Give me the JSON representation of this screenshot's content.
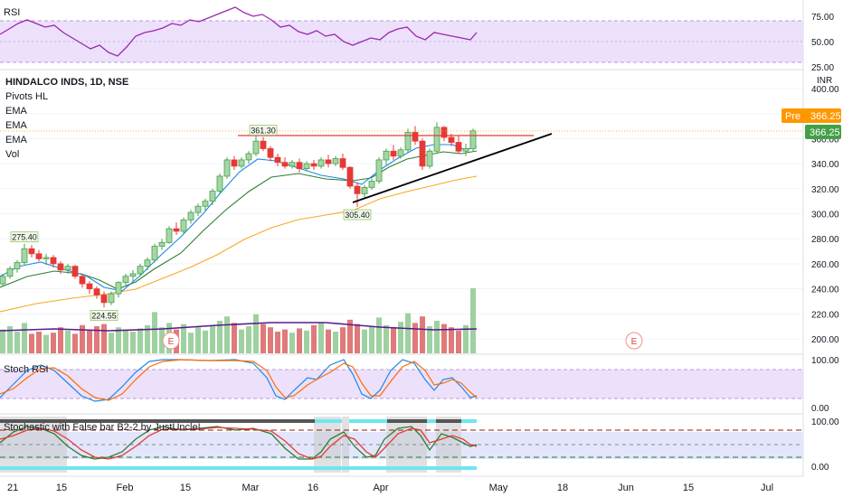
{
  "colors": {
    "up": "#43a047",
    "down": "#e53935",
    "ema_fast": "#1e88e5",
    "ema_mid": "#2e7d32",
    "ema_slow": "#f9a825",
    "rsi": "#9c27b0",
    "band": "#e9d8fb",
    "resistance": "#e53935",
    "trendline": "#000000",
    "price_tag": "#ff9800",
    "last_tag": "#43a047"
  },
  "rsi_pane": {
    "title": "RSI",
    "ticks": [
      "75.00",
      "50.00",
      "25.00"
    ]
  },
  "main_pane": {
    "symbol": "HINDALCO INDS, 1D, NSE",
    "indicators": [
      "Pivots HL",
      "EMA",
      "EMA",
      "EMA",
      "Vol"
    ],
    "currency": "INR",
    "price_ticks": [
      "400.00",
      "380.00",
      "360.00",
      "340.00",
      "320.00",
      "300.00",
      "280.00",
      "260.00",
      "240.00",
      "220.00",
      "200.00"
    ],
    "pivots": [
      "275.40",
      "361.30",
      "224.55",
      "305.40"
    ],
    "pre_label": "Pre",
    "pre_value": "366.25",
    "last_value": "366.25",
    "earnings_marker": "E"
  },
  "stoch_rsi_pane": {
    "title": "Stoch RSI",
    "ticks": [
      "100.00",
      "0.00"
    ]
  },
  "stoch_pane": {
    "title": "Stochastic with False bar B2-2 by JustUncle!",
    "ticks": [
      "100.00",
      "0.00"
    ]
  },
  "time_axis": [
    "21",
    "15",
    "Feb",
    "15",
    "Mar",
    "16",
    "Apr",
    "May",
    "18",
    "Jun",
    "15",
    "Jul"
  ],
  "chart_data": {
    "type": "candlestick",
    "symbol": "HINDALCO INDS",
    "interval": "1D",
    "exchange": "NSE",
    "y_range": [
      195,
      405
    ],
    "series": [
      {
        "name": "Pivots HL",
        "values": [
          275.4,
          361.3,
          224.55,
          305.4
        ]
      }
    ],
    "candles_ohlc": [
      [
        244,
        252,
        242,
        250
      ],
      [
        250,
        258,
        248,
        256
      ],
      [
        256,
        263,
        253,
        261
      ],
      [
        261,
        276,
        259,
        272
      ],
      [
        272,
        275,
        265,
        268
      ],
      [
        268,
        271,
        262,
        264
      ],
      [
        264,
        268,
        259,
        265
      ],
      [
        265,
        267,
        257,
        260
      ],
      [
        260,
        262,
        252,
        255
      ],
      [
        255,
        260,
        252,
        258
      ],
      [
        258,
        259,
        248,
        250
      ],
      [
        250,
        252,
        241,
        244
      ],
      [
        244,
        246,
        236,
        240
      ],
      [
        240,
        242,
        232,
        235
      ],
      [
        235,
        238,
        225,
        229
      ],
      [
        229,
        238,
        227,
        236
      ],
      [
        236,
        246,
        233,
        245
      ],
      [
        245,
        252,
        242,
        250
      ],
      [
        250,
        255,
        246,
        252
      ],
      [
        252,
        260,
        250,
        258
      ],
      [
        258,
        265,
        255,
        263
      ],
      [
        263,
        276,
        261,
        274
      ],
      [
        274,
        280,
        271,
        277
      ],
      [
        277,
        290,
        276,
        288
      ],
      [
        288,
        293,
        283,
        286
      ],
      [
        286,
        297,
        284,
        295
      ],
      [
        295,
        303,
        292,
        301
      ],
      [
        301,
        308,
        298,
        306
      ],
      [
        306,
        312,
        302,
        310
      ],
      [
        310,
        320,
        307,
        318
      ],
      [
        318,
        332,
        316,
        330
      ],
      [
        330,
        345,
        328,
        343
      ],
      [
        343,
        346,
        335,
        338
      ],
      [
        338,
        345,
        336,
        343
      ],
      [
        343,
        350,
        340,
        348
      ],
      [
        348,
        362,
        346,
        358
      ],
      [
        358,
        361.3,
        350,
        352
      ],
      [
        352,
        354,
        342,
        345
      ],
      [
        345,
        348,
        338,
        341
      ],
      [
        341,
        345,
        336,
        338
      ],
      [
        338,
        343,
        336,
        341
      ],
      [
        341,
        344,
        333,
        336
      ],
      [
        336,
        342,
        334,
        340
      ],
      [
        340,
        343,
        335,
        338
      ],
      [
        338,
        345,
        336,
        343
      ],
      [
        343,
        347,
        337,
        340
      ],
      [
        340,
        346,
        338,
        344
      ],
      [
        344,
        348,
        335,
        337
      ],
      [
        337,
        338,
        320,
        322
      ],
      [
        322,
        325,
        305.4,
        316
      ],
      [
        316,
        323,
        313,
        321
      ],
      [
        321,
        328,
        319,
        326
      ],
      [
        326,
        345,
        324,
        343
      ],
      [
        343,
        352,
        339,
        350
      ],
      [
        350,
        355,
        343,
        346
      ],
      [
        346,
        353,
        344,
        351
      ],
      [
        351,
        368,
        349,
        365
      ],
      [
        365,
        370,
        355,
        358
      ],
      [
        358,
        360,
        335,
        338
      ],
      [
        338,
        352,
        336,
        350
      ],
      [
        350,
        373,
        348,
        369
      ],
      [
        369,
        370,
        358,
        361
      ],
      [
        361,
        364,
        354,
        357
      ],
      [
        357,
        362,
        348,
        350
      ],
      [
        350,
        356,
        346,
        352
      ],
      [
        352,
        368,
        350,
        366.25
      ]
    ],
    "volume": [
      22,
      25,
      20,
      28,
      18,
      20,
      17,
      19,
      24,
      21,
      18,
      26,
      22,
      25,
      27,
      19,
      24,
      22,
      20,
      23,
      26,
      38,
      24,
      28,
      22,
      27,
      19,
      24,
      21,
      26,
      30,
      34,
      28,
      22,
      25,
      36,
      27,
      24,
      20,
      22,
      19,
      23,
      21,
      26,
      28,
      22,
      20,
      24,
      31,
      27,
      22,
      25,
      33,
      26,
      24,
      29,
      37,
      28,
      34,
      25,
      30,
      27,
      24,
      21,
      26,
      60
    ]
  }
}
